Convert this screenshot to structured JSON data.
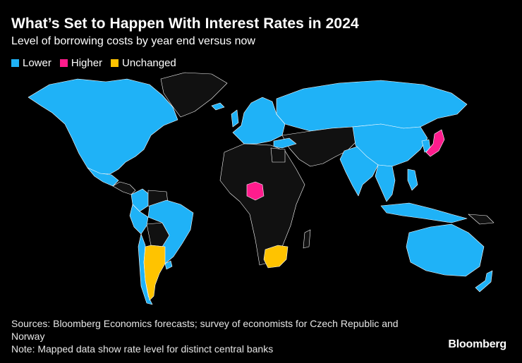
{
  "header": {
    "title": "What’s Set to Happen With Interest Rates in 2024",
    "subtitle": "Level of borrowing costs by year end versus now"
  },
  "legend": [
    {
      "label": "Lower",
      "color": "#1fb2f7"
    },
    {
      "label": "Higher",
      "color": "#ff1c8d"
    },
    {
      "label": "Unchanged",
      "color": "#ffc300"
    }
  ],
  "map": {
    "base_color": "#111111",
    "border_color": "#ffffff",
    "regions": [
      {
        "name": "North America",
        "status": "Lower"
      },
      {
        "name": "Mexico",
        "status": "Lower"
      },
      {
        "name": "Brazil",
        "status": "Lower"
      },
      {
        "name": "Colombia",
        "status": "Lower"
      },
      {
        "name": "Chile",
        "status": "Lower"
      },
      {
        "name": "Peru",
        "status": "Lower"
      },
      {
        "name": "Argentina",
        "status": "Unchanged"
      },
      {
        "name": "Europe",
        "status": "Lower"
      },
      {
        "name": "Russia",
        "status": "Lower"
      },
      {
        "name": "China",
        "status": "Lower"
      },
      {
        "name": "India",
        "status": "Lower"
      },
      {
        "name": "Indonesia",
        "status": "Lower"
      },
      {
        "name": "Australia",
        "status": "Lower"
      },
      {
        "name": "New Zealand",
        "status": "Lower"
      },
      {
        "name": "Nigeria",
        "status": "Higher"
      },
      {
        "name": "Japan",
        "status": "Higher"
      },
      {
        "name": "South Africa",
        "status": "Unchanged"
      }
    ]
  },
  "footer": {
    "sources": "Sources: Bloomberg Economics forecasts; survey of economists for Czech Republic and Norway",
    "note": "Note: Mapped data show rate level for distinct central banks"
  },
  "brand": "Bloomberg"
}
